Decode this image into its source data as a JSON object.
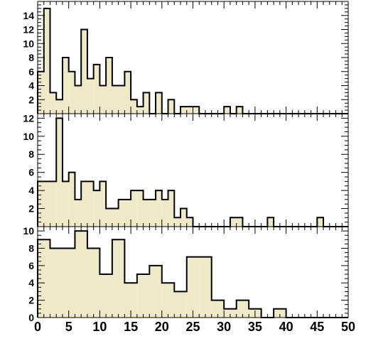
{
  "colors": {
    "fill": "#efe9c8",
    "line": "#000000",
    "background": "#ffffff"
  },
  "chart_data": [
    {
      "type": "bar",
      "bin_width": 1,
      "x_start": 0,
      "xlim": [
        0,
        50
      ],
      "ylim": [
        0,
        16
      ],
      "y_ticks": [
        2,
        4,
        6,
        8,
        10,
        12,
        14
      ],
      "values": [
        6,
        15,
        3,
        2,
        8,
        6,
        4,
        12,
        5,
        7,
        4,
        8,
        4,
        4,
        6,
        2,
        1,
        3,
        0,
        3,
        0,
        2,
        0,
        1,
        1,
        1,
        0,
        0,
        0,
        0,
        1,
        0,
        1,
        0,
        0,
        0,
        0,
        0,
        0,
        0,
        0,
        0,
        0,
        0,
        0,
        0,
        0,
        0,
        0,
        0
      ],
      "grid": false
    },
    {
      "type": "bar",
      "bin_width": 1,
      "x_start": 0,
      "xlim": [
        0,
        50
      ],
      "ylim": [
        0,
        12.5
      ],
      "y_ticks": [
        2,
        4,
        6,
        8,
        10,
        12
      ],
      "values": [
        5,
        5,
        5,
        12,
        5,
        6,
        3,
        5,
        5,
        4,
        5,
        2,
        2,
        3,
        3,
        4,
        4,
        3,
        3,
        4,
        3,
        4,
        1,
        2,
        1,
        0,
        0,
        0,
        0,
        0,
        0,
        1,
        1,
        0,
        0,
        0,
        0,
        1,
        0,
        0,
        0,
        0,
        0,
        0,
        0,
        1,
        0,
        0,
        0,
        0
      ],
      "grid": false
    },
    {
      "type": "bar",
      "bin_width": 2,
      "x_start": 0,
      "xlim": [
        0,
        50
      ],
      "ylim": [
        0,
        10.5
      ],
      "y_ticks": [
        0,
        2,
        4,
        6,
        8,
        10
      ],
      "x_ticks": [
        0,
        5,
        10,
        15,
        20,
        25,
        30,
        35,
        40,
        45,
        50
      ],
      "x_tick_labels": [
        "0",
        "5",
        "10",
        "15",
        "20",
        "25",
        "30",
        "35",
        "40",
        "45",
        "50"
      ],
      "values": [
        9,
        8,
        8,
        10,
        8,
        5,
        9,
        4,
        5,
        6,
        4,
        3,
        7,
        7,
        2,
        1,
        2,
        1,
        0,
        1,
        0,
        0,
        0,
        0,
        0
      ],
      "grid": false
    }
  ]
}
